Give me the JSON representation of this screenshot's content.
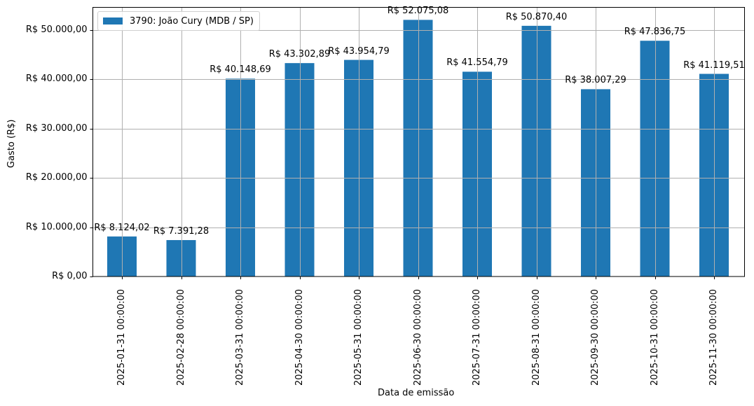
{
  "chart_data": {
    "type": "bar",
    "title": "",
    "xlabel": "Data de emissão",
    "ylabel": "Gasto (R$)",
    "ylim": [
      0,
      54500
    ],
    "grid": true,
    "legend_position": "upper left",
    "categories": [
      "2025-01-31 00:00:00",
      "2025-02-28 00:00:00",
      "2025-03-31 00:00:00",
      "2025-04-30 00:00:00",
      "2025-05-31 00:00:00",
      "2025-06-30 00:00:00",
      "2025-07-31 00:00:00",
      "2025-08-31 00:00:00",
      "2025-09-30 00:00:00",
      "2025-10-31 00:00:00",
      "2025-11-30 00:00:00"
    ],
    "series": [
      {
        "name": "3790: João Cury (MDB / SP)",
        "color": "#1f77b4",
        "values": [
          8124.02,
          7391.28,
          40148.69,
          43302.89,
          43954.79,
          52075.08,
          41554.79,
          50870.4,
          38007.29,
          47836.75,
          41119.51
        ],
        "labels": [
          "R$ 8.124,02",
          "R$ 7.391,28",
          "R$ 40.148,69",
          "R$ 43.302,89",
          "R$ 43.954,79",
          "R$ 52.075,08",
          "R$ 41.554,79",
          "R$ 50.870,40",
          "R$ 38.007,29",
          "R$ 47.836,75",
          "R$ 41.119,51"
        ]
      }
    ],
    "yticks": [
      0,
      10000,
      20000,
      30000,
      40000,
      50000
    ],
    "ytick_labels": [
      "R$ 0,00",
      "R$ 10.000,00",
      "R$ 20.000,00",
      "R$ 30.000,00",
      "R$ 40.000,00",
      "R$ 50.000,00"
    ]
  },
  "colors": {
    "bar": "#1f77b4",
    "grid": "#b0b0b0",
    "axis": "#000000"
  }
}
